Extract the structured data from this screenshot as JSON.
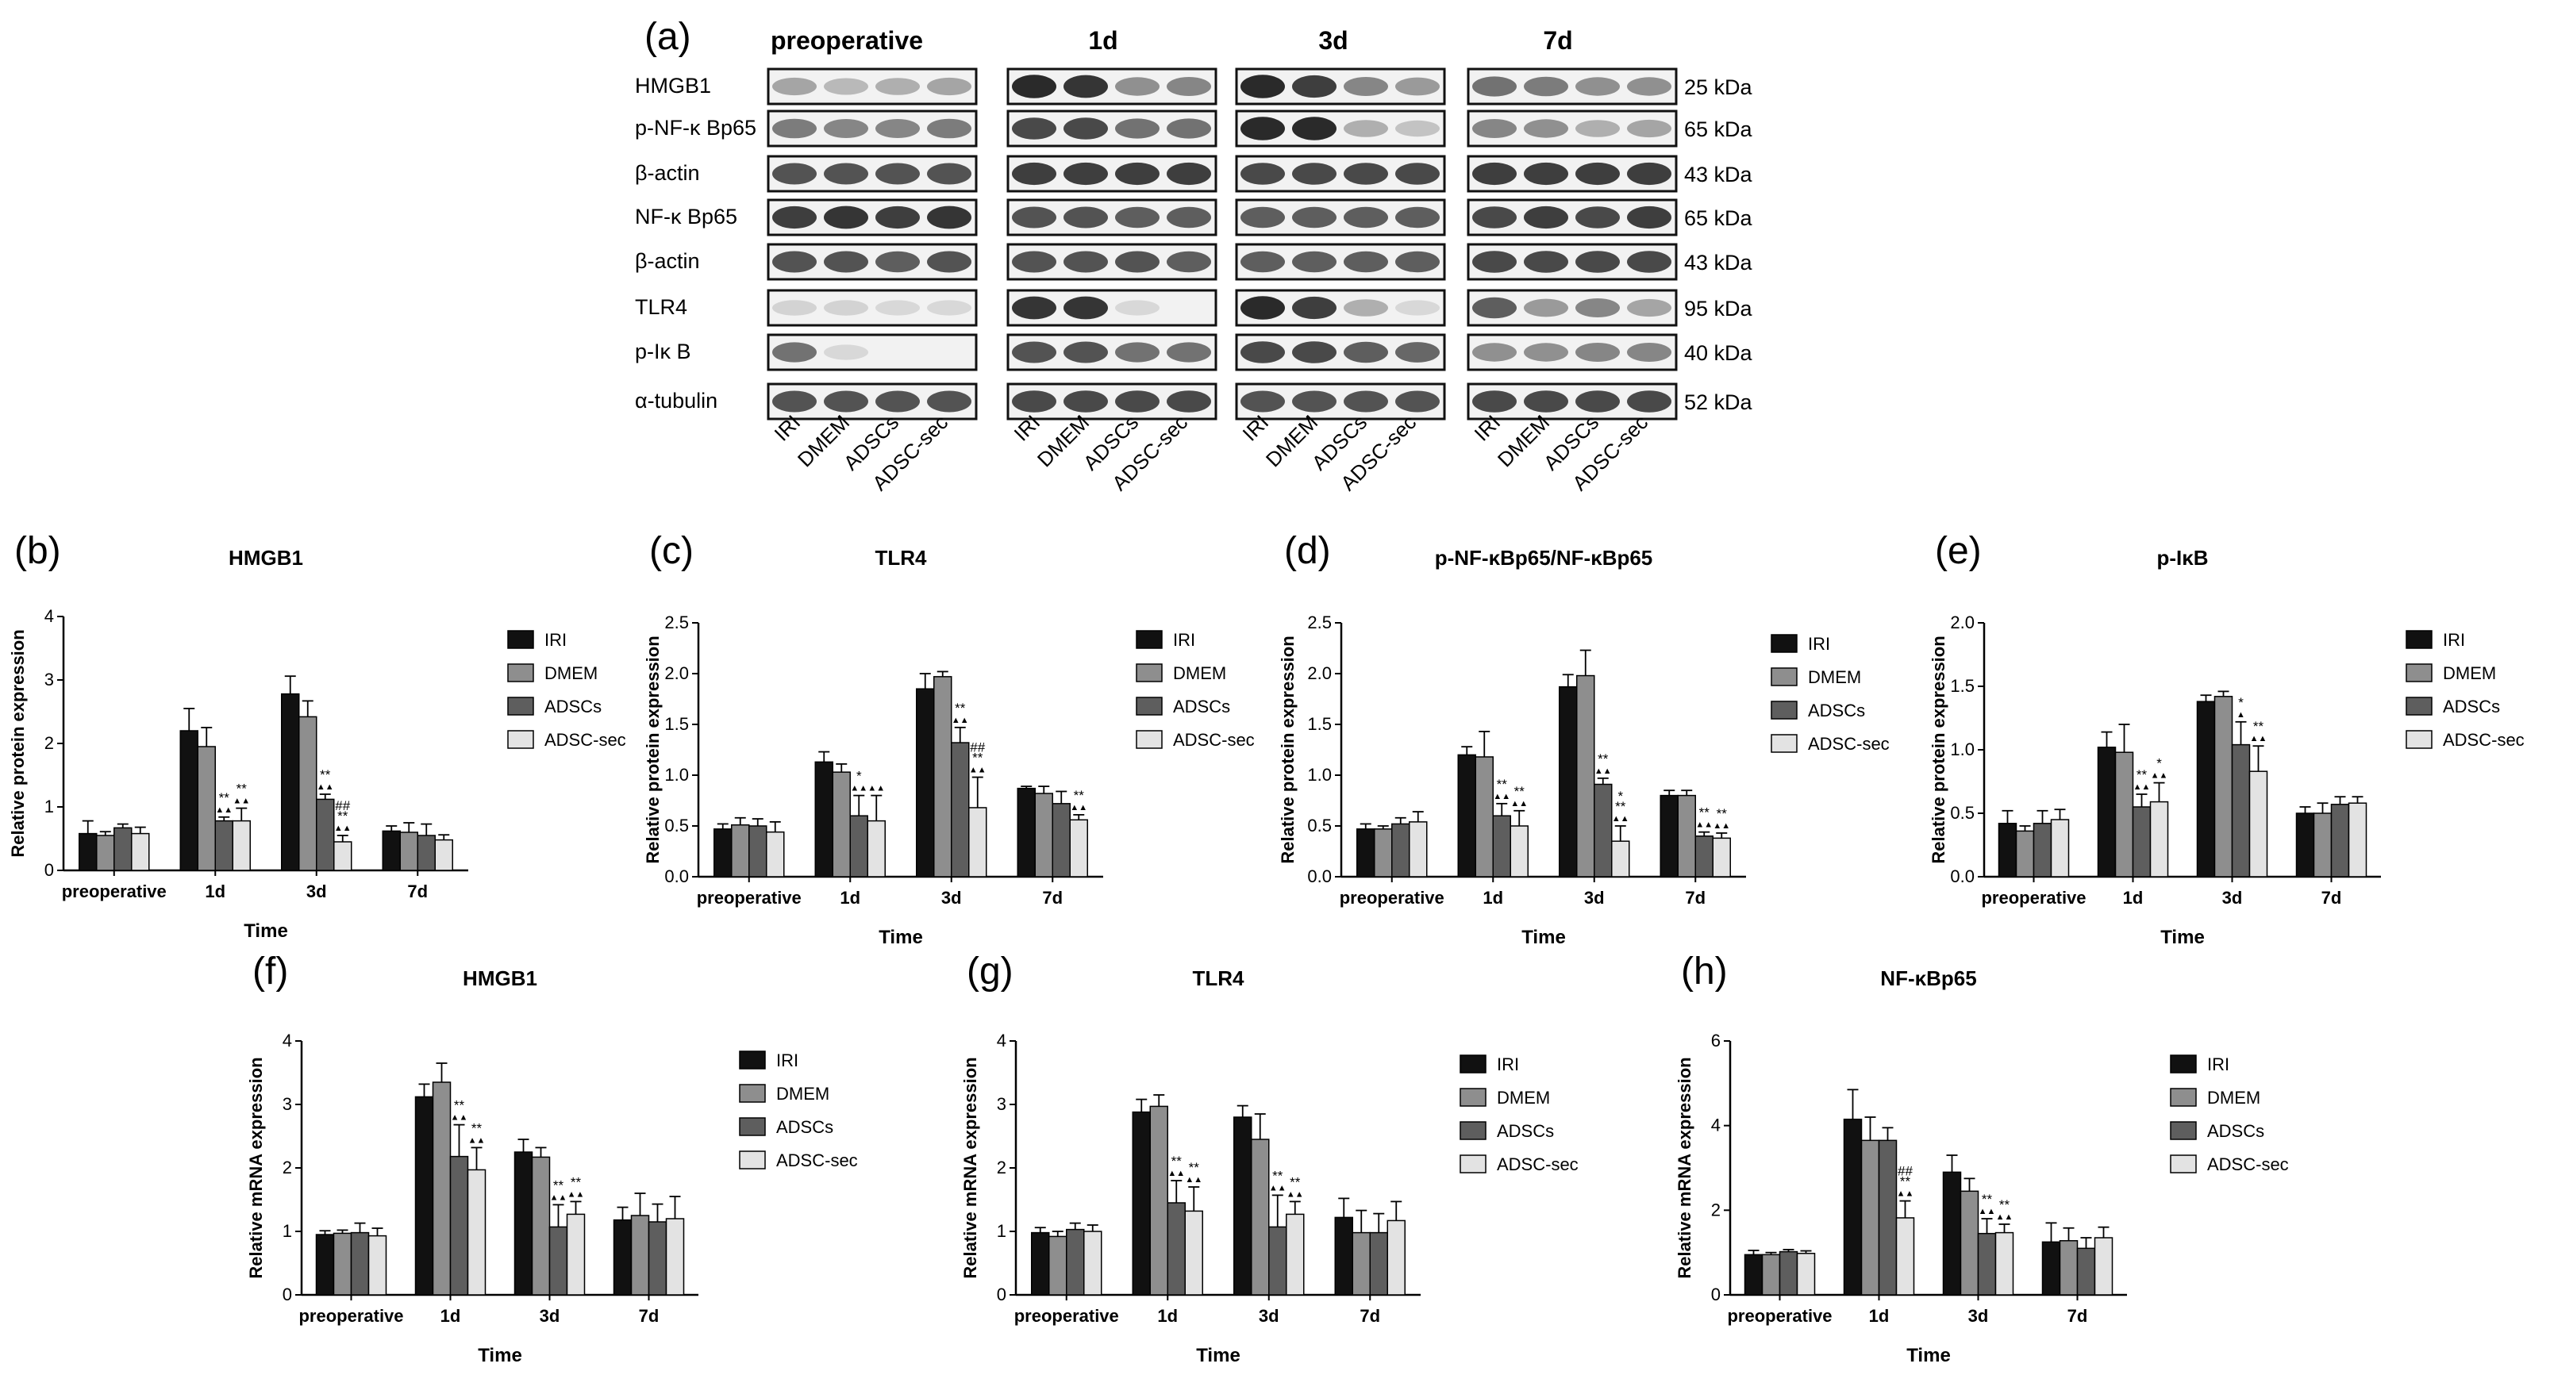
{
  "panel_a": {
    "letter": "(a)",
    "columns": [
      "preoperative",
      "1d",
      "3d",
      "7d"
    ],
    "rows": [
      "HMGB1",
      "p-NF-κ Bp65",
      "β-actin",
      "NF-κ Bp65",
      "β-actin",
      "TLR4",
      "p-Iκ B",
      "α-tubulin"
    ],
    "kda": [
      "25 kDa",
      "65 kDa",
      "43 kDa",
      "65 kDa",
      "43 kDa",
      "95 kDa",
      "40 kDa",
      "52 kDa"
    ],
    "lanes": [
      "IRI",
      "DMEM",
      "ADSCs",
      "ADSC-sec"
    ]
  },
  "colors": {
    "IRI": "#111111",
    "DMEM": "#8e8e8e",
    "ADSCs": "#5e5e5e",
    "ADSC-sec": "#e3e3e3"
  },
  "chart_data": [
    {
      "id": "b",
      "letter": "(b)",
      "type": "bar",
      "title": "HMGB1",
      "ylabel": "Relative protein expression",
      "xlabel": "Time",
      "categories": [
        "preoperative",
        "1d",
        "3d",
        "7d"
      ],
      "ylim": [
        0,
        4
      ],
      "yticks": [
        0,
        1,
        2,
        3,
        4
      ],
      "series": [
        {
          "name": "IRI",
          "values": [
            0.58,
            2.2,
            2.78,
            0.62
          ],
          "errors": [
            0.2,
            0.35,
            0.28,
            0.08
          ]
        },
        {
          "name": "DMEM",
          "values": [
            0.55,
            1.95,
            2.42,
            0.6
          ],
          "errors": [
            0.06,
            0.3,
            0.25,
            0.15
          ]
        },
        {
          "name": "ADSCs",
          "values": [
            0.67,
            0.78,
            1.12,
            0.55
          ],
          "errors": [
            0.06,
            0.06,
            0.08,
            0.18
          ]
        },
        {
          "name": "ADSC-sec",
          "values": [
            0.58,
            0.78,
            0.45,
            0.48
          ],
          "errors": [
            0.1,
            0.2,
            0.1,
            0.08
          ]
        }
      ],
      "annotations": [
        {
          "cat": 1,
          "s": 2,
          "label": "**"
        },
        {
          "cat": 1,
          "s": 2,
          "label": "▲▲"
        },
        {
          "cat": 1,
          "s": 3,
          "label": "**"
        },
        {
          "cat": 1,
          "s": 3,
          "label": "▲▲"
        },
        {
          "cat": 2,
          "s": 2,
          "label": "**"
        },
        {
          "cat": 2,
          "s": 2,
          "label": "▲▲"
        },
        {
          "cat": 2,
          "s": 3,
          "label": "##"
        },
        {
          "cat": 2,
          "s": 3,
          "label": "**"
        },
        {
          "cat": 2,
          "s": 3,
          "label": "▲▲"
        }
      ]
    },
    {
      "id": "c",
      "letter": "(c)",
      "type": "bar",
      "title": "TLR4",
      "ylabel": "Relative protein expression",
      "xlabel": "Time",
      "categories": [
        "preoperative",
        "1d",
        "3d",
        "7d"
      ],
      "ylim": [
        0,
        2.5
      ],
      "yticks": [
        0,
        0.5,
        1.0,
        1.5,
        2.0,
        2.5
      ],
      "series": [
        {
          "name": "IRI",
          "values": [
            0.47,
            1.13,
            1.85,
            0.87
          ],
          "errors": [
            0.05,
            0.1,
            0.15,
            0.02
          ]
        },
        {
          "name": "DMEM",
          "values": [
            0.51,
            1.03,
            1.97,
            0.82
          ],
          "errors": [
            0.07,
            0.08,
            0.05,
            0.07
          ]
        },
        {
          "name": "ADSCs",
          "values": [
            0.5,
            0.6,
            1.32,
            0.72
          ],
          "errors": [
            0.07,
            0.2,
            0.15,
            0.12
          ]
        },
        {
          "name": "ADSC-sec",
          "values": [
            0.44,
            0.55,
            0.68,
            0.56
          ],
          "errors": [
            0.1,
            0.25,
            0.3,
            0.05
          ]
        }
      ],
      "annotations": [
        {
          "cat": 1,
          "s": 2,
          "label": "*"
        },
        {
          "cat": 1,
          "s": 2,
          "label": "▲▲"
        },
        {
          "cat": 1,
          "s": 3,
          "label": "▲▲"
        },
        {
          "cat": 2,
          "s": 2,
          "label": "**"
        },
        {
          "cat": 2,
          "s": 2,
          "label": "▲▲"
        },
        {
          "cat": 2,
          "s": 3,
          "label": "##"
        },
        {
          "cat": 2,
          "s": 3,
          "label": "**"
        },
        {
          "cat": 2,
          "s": 3,
          "label": "▲▲"
        },
        {
          "cat": 3,
          "s": 3,
          "label": "**"
        },
        {
          "cat": 3,
          "s": 3,
          "label": "▲▲"
        }
      ]
    },
    {
      "id": "d",
      "letter": "(d)",
      "type": "bar",
      "title": "p-NF-κBp65/NF-κBp65",
      "ylabel": "Relative protein expression",
      "xlabel": "Time",
      "categories": [
        "preoperative",
        "1d",
        "3d",
        "7d"
      ],
      "ylim": [
        0,
        2.5
      ],
      "yticks": [
        0,
        0.5,
        1.0,
        1.5,
        2.0,
        2.5
      ],
      "series": [
        {
          "name": "IRI",
          "values": [
            0.47,
            1.2,
            1.87,
            0.8
          ],
          "errors": [
            0.05,
            0.08,
            0.12,
            0.05
          ]
        },
        {
          "name": "DMEM",
          "values": [
            0.47,
            1.18,
            1.98,
            0.8
          ],
          "errors": [
            0.03,
            0.25,
            0.25,
            0.05
          ]
        },
        {
          "name": "ADSCs",
          "values": [
            0.52,
            0.6,
            0.91,
            0.4
          ],
          "errors": [
            0.06,
            0.12,
            0.06,
            0.04
          ]
        },
        {
          "name": "ADSC-sec",
          "values": [
            0.54,
            0.5,
            0.35,
            0.38
          ],
          "errors": [
            0.1,
            0.15,
            0.15,
            0.05
          ]
        }
      ],
      "annotations": [
        {
          "cat": 1,
          "s": 2,
          "label": "**"
        },
        {
          "cat": 1,
          "s": 2,
          "label": "▲▲"
        },
        {
          "cat": 1,
          "s": 3,
          "label": "**"
        },
        {
          "cat": 1,
          "s": 3,
          "label": "▲▲"
        },
        {
          "cat": 2,
          "s": 2,
          "label": "**"
        },
        {
          "cat": 2,
          "s": 2,
          "label": "▲▲"
        },
        {
          "cat": 2,
          "s": 3,
          "label": "*"
        },
        {
          "cat": 2,
          "s": 3,
          "label": "**"
        },
        {
          "cat": 2,
          "s": 3,
          "label": "▲▲"
        },
        {
          "cat": 3,
          "s": 2,
          "label": "**"
        },
        {
          "cat": 3,
          "s": 2,
          "label": "▲▲"
        },
        {
          "cat": 3,
          "s": 3,
          "label": "**"
        },
        {
          "cat": 3,
          "s": 3,
          "label": "▲▲"
        }
      ]
    },
    {
      "id": "e",
      "letter": "(e)",
      "type": "bar",
      "title": "p-IκB",
      "ylabel": "Relative protein expression",
      "xlabel": "Time",
      "categories": [
        "preoperative",
        "1d",
        "3d",
        "7d"
      ],
      "ylim": [
        0,
        2.0
      ],
      "yticks": [
        0,
        0.5,
        1.0,
        1.5,
        2.0
      ],
      "series": [
        {
          "name": "IRI",
          "values": [
            0.42,
            1.02,
            1.38,
            0.5
          ],
          "errors": [
            0.1,
            0.12,
            0.05,
            0.05
          ]
        },
        {
          "name": "DMEM",
          "values": [
            0.36,
            0.98,
            1.42,
            0.5
          ],
          "errors": [
            0.04,
            0.22,
            0.04,
            0.08
          ]
        },
        {
          "name": "ADSCs",
          "values": [
            0.42,
            0.55,
            1.04,
            0.57
          ],
          "errors": [
            0.1,
            0.1,
            0.18,
            0.06
          ]
        },
        {
          "name": "ADSC-sec",
          "values": [
            0.45,
            0.59,
            0.83,
            0.58
          ],
          "errors": [
            0.08,
            0.15,
            0.2,
            0.05
          ]
        }
      ],
      "annotations": [
        {
          "cat": 1,
          "s": 2,
          "label": "**"
        },
        {
          "cat": 1,
          "s": 2,
          "label": "▲▲"
        },
        {
          "cat": 1,
          "s": 3,
          "label": "*"
        },
        {
          "cat": 1,
          "s": 3,
          "label": "▲▲"
        },
        {
          "cat": 2,
          "s": 2,
          "label": "*"
        },
        {
          "cat": 2,
          "s": 2,
          "label": "▲"
        },
        {
          "cat": 2,
          "s": 3,
          "label": "**"
        },
        {
          "cat": 2,
          "s": 3,
          "label": "▲▲"
        }
      ]
    },
    {
      "id": "f",
      "letter": "(f)",
      "type": "bar",
      "title": "HMGB1",
      "ylabel": "Relative mRNA expression",
      "xlabel": "Time",
      "categories": [
        "preoperative",
        "1d",
        "3d",
        "7d"
      ],
      "ylim": [
        0,
        4
      ],
      "yticks": [
        0,
        1,
        2,
        3,
        4
      ],
      "series": [
        {
          "name": "IRI",
          "values": [
            0.95,
            3.12,
            2.25,
            1.18
          ],
          "errors": [
            0.06,
            0.2,
            0.2,
            0.2
          ]
        },
        {
          "name": "DMEM",
          "values": [
            0.97,
            3.35,
            2.17,
            1.25
          ],
          "errors": [
            0.05,
            0.3,
            0.15,
            0.35
          ]
        },
        {
          "name": "ADSCs",
          "values": [
            0.98,
            2.18,
            1.07,
            1.15
          ],
          "errors": [
            0.15,
            0.5,
            0.35,
            0.28
          ]
        },
        {
          "name": "ADSC-sec",
          "values": [
            0.93,
            1.97,
            1.27,
            1.2
          ],
          "errors": [
            0.12,
            0.35,
            0.2,
            0.35
          ]
        }
      ],
      "annotations": [
        {
          "cat": 1,
          "s": 2,
          "label": "**"
        },
        {
          "cat": 1,
          "s": 2,
          "label": "▲▲"
        },
        {
          "cat": 1,
          "s": 3,
          "label": "**"
        },
        {
          "cat": 1,
          "s": 3,
          "label": "▲▲"
        },
        {
          "cat": 2,
          "s": 2,
          "label": "**"
        },
        {
          "cat": 2,
          "s": 2,
          "label": "▲▲"
        },
        {
          "cat": 2,
          "s": 3,
          "label": "**"
        },
        {
          "cat": 2,
          "s": 3,
          "label": "▲▲"
        }
      ]
    },
    {
      "id": "g",
      "letter": "(g)",
      "type": "bar",
      "title": "TLR4",
      "ylabel": "Relative mRNA expression",
      "xlabel": "Time",
      "categories": [
        "preoperative",
        "1d",
        "3d",
        "7d"
      ],
      "ylim": [
        0,
        4
      ],
      "yticks": [
        0,
        1,
        2,
        3,
        4
      ],
      "series": [
        {
          "name": "IRI",
          "values": [
            0.98,
            2.88,
            2.8,
            1.22
          ],
          "errors": [
            0.08,
            0.2,
            0.18,
            0.3
          ]
        },
        {
          "name": "DMEM",
          "values": [
            0.92,
            2.97,
            2.45,
            0.98
          ],
          "errors": [
            0.08,
            0.18,
            0.4,
            0.35
          ]
        },
        {
          "name": "ADSCs",
          "values": [
            1.03,
            1.45,
            1.07,
            0.98
          ],
          "errors": [
            0.1,
            0.35,
            0.5,
            0.3
          ]
        },
        {
          "name": "ADSC-sec",
          "values": [
            1.0,
            1.32,
            1.27,
            1.17
          ],
          "errors": [
            0.1,
            0.38,
            0.2,
            0.3
          ]
        }
      ],
      "annotations": [
        {
          "cat": 1,
          "s": 2,
          "label": "**"
        },
        {
          "cat": 1,
          "s": 2,
          "label": "▲▲"
        },
        {
          "cat": 1,
          "s": 3,
          "label": "**"
        },
        {
          "cat": 1,
          "s": 3,
          "label": "▲▲"
        },
        {
          "cat": 2,
          "s": 2,
          "label": "**"
        },
        {
          "cat": 2,
          "s": 2,
          "label": "▲▲"
        },
        {
          "cat": 2,
          "s": 3,
          "label": "**"
        },
        {
          "cat": 2,
          "s": 3,
          "label": "▲▲"
        }
      ]
    },
    {
      "id": "h",
      "letter": "(h)",
      "type": "bar",
      "title": "NF-κBp65",
      "ylabel": "Relative mRNA expression",
      "xlabel": "Time",
      "categories": [
        "preoperative",
        "1d",
        "3d",
        "7d"
      ],
      "ylim": [
        0,
        6
      ],
      "yticks": [
        0,
        2,
        4,
        6
      ],
      "series": [
        {
          "name": "IRI",
          "values": [
            0.95,
            4.15,
            2.9,
            1.25
          ],
          "errors": [
            0.1,
            0.7,
            0.4,
            0.45
          ]
        },
        {
          "name": "DMEM",
          "values": [
            0.95,
            3.65,
            2.45,
            1.28
          ],
          "errors": [
            0.05,
            0.55,
            0.3,
            0.3
          ]
        },
        {
          "name": "ADSCs",
          "values": [
            1.02,
            3.65,
            1.45,
            1.1
          ],
          "errors": [
            0.05,
            0.3,
            0.35,
            0.25
          ]
        },
        {
          "name": "ADSC-sec",
          "values": [
            0.98,
            1.82,
            1.47,
            1.35
          ],
          "errors": [
            0.06,
            0.4,
            0.2,
            0.25
          ]
        }
      ],
      "annotations": [
        {
          "cat": 1,
          "s": 3,
          "label": "##"
        },
        {
          "cat": 1,
          "s": 3,
          "label": "**"
        },
        {
          "cat": 1,
          "s": 3,
          "label": "▲▲"
        },
        {
          "cat": 2,
          "s": 2,
          "label": "**"
        },
        {
          "cat": 2,
          "s": 2,
          "label": "▲▲"
        },
        {
          "cat": 2,
          "s": 3,
          "label": "**"
        },
        {
          "cat": 2,
          "s": 3,
          "label": "▲▲"
        }
      ]
    }
  ]
}
